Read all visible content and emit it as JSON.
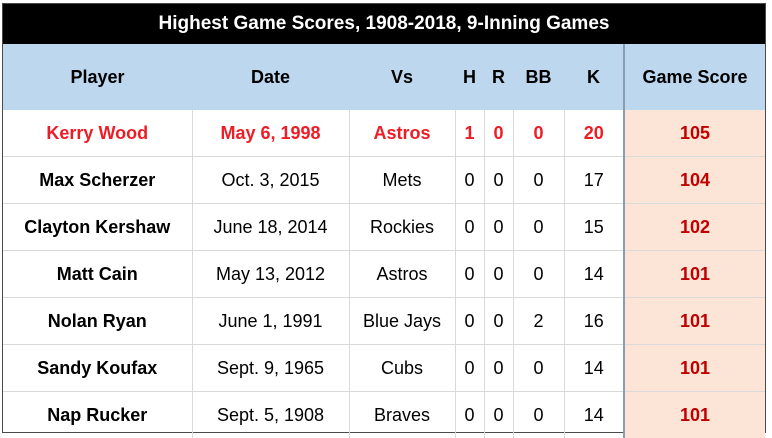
{
  "title": "Highest Game Scores, 1908-2018, 9-Inning Games",
  "columns": [
    "Player",
    "Date",
    "Vs",
    "H",
    "R",
    "BB",
    "K",
    "Game Score"
  ],
  "colors": {
    "header_bg": "#bdd7ee",
    "title_bg": "#000000",
    "score_bg": "#fce4d6",
    "score_text": "#c00000",
    "highlight_text": "#ee1c25"
  },
  "rows": [
    {
      "player": "Kerry Wood",
      "date": "May 6, 1998",
      "vs": "Astros",
      "h": "1",
      "r": "0",
      "bb": "0",
      "k": "20",
      "score": "105"
    },
    {
      "player": "Max Scherzer",
      "date": "Oct. 3, 2015",
      "vs": "Mets",
      "h": "0",
      "r": "0",
      "bb": "0",
      "k": "17",
      "score": "104"
    },
    {
      "player": "Clayton Kershaw",
      "date": "June 18, 2014",
      "vs": "Rockies",
      "h": "0",
      "r": "0",
      "bb": "0",
      "k": "15",
      "score": "102"
    },
    {
      "player": "Matt Cain",
      "date": "May 13, 2012",
      "vs": "Astros",
      "h": "0",
      "r": "0",
      "bb": "0",
      "k": "14",
      "score": "101"
    },
    {
      "player": "Nolan Ryan",
      "date": "June 1, 1991",
      "vs": "Blue Jays",
      "h": "0",
      "r": "0",
      "bb": "2",
      "k": "16",
      "score": "101"
    },
    {
      "player": "Sandy Koufax",
      "date": "Sept. 9, 1965",
      "vs": "Cubs",
      "h": "0",
      "r": "0",
      "bb": "0",
      "k": "14",
      "score": "101"
    },
    {
      "player": "Nap Rucker",
      "date": "Sept. 5, 1908",
      "vs": "Braves",
      "h": "0",
      "r": "0",
      "bb": "0",
      "k": "14",
      "score": "101"
    }
  ]
}
